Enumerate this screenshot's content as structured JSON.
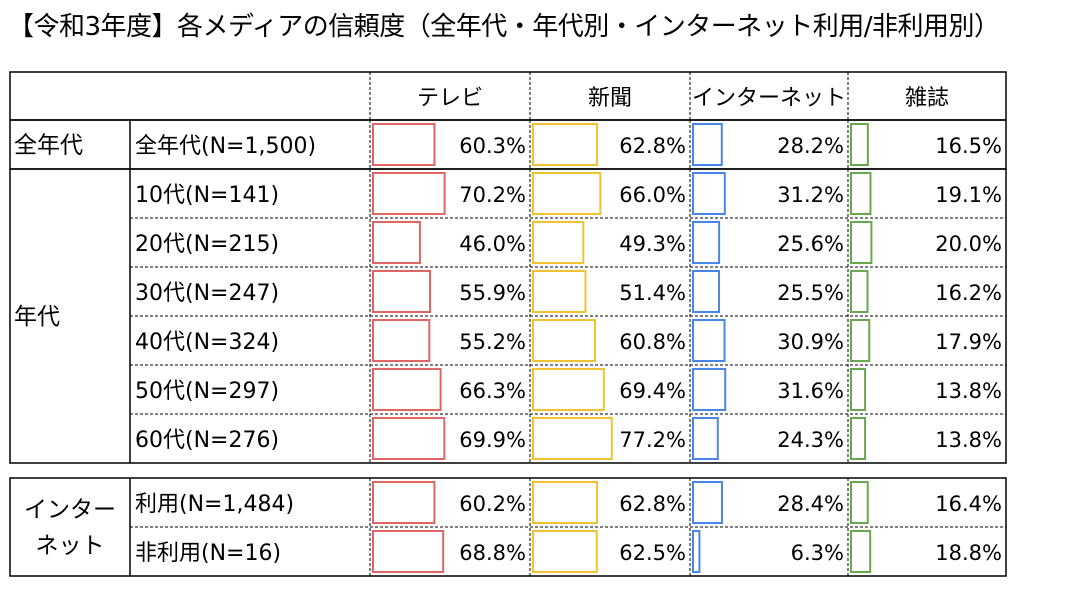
{
  "title": "【令和3年度】各メディアの信頼度（全年代・年代別・インターネット利用/非利用別）",
  "colors": {
    "tv": "#e06666",
    "newspaper": "#f1c232",
    "internet": "#4a86e8",
    "magazine": "#6aa84f"
  },
  "chart_data": {
    "type": "table",
    "title": "【令和3年度】各メディアの信頼度（全年代・年代別・インターネット利用/非利用別）",
    "columns": [
      "テレビ",
      "新聞",
      "インターネット",
      "雑誌"
    ],
    "xlim": [
      0,
      100
    ],
    "groups": [
      {
        "label": "全年代",
        "rows": [
          {
            "label": "全年代(N=1,500)",
            "values": [
              60.3,
              62.8,
              28.2,
              16.5
            ],
            "display": [
              "60.3%",
              "62.8%",
              "28.2%",
              "16.5%"
            ]
          }
        ]
      },
      {
        "label": "年代",
        "rows": [
          {
            "label": "10代(N=141)",
            "values": [
              70.2,
              66.0,
              31.2,
              19.1
            ],
            "display": [
              "70.2%",
              "66.0%",
              "31.2%",
              "19.1%"
            ]
          },
          {
            "label": "20代(N=215)",
            "values": [
              46.0,
              49.3,
              25.6,
              20.0
            ],
            "display": [
              "46.0%",
              "49.3%",
              "25.6%",
              "20.0%"
            ]
          },
          {
            "label": "30代(N=247)",
            "values": [
              55.9,
              51.4,
              25.5,
              16.2
            ],
            "display": [
              "55.9%",
              "51.4%",
              "25.5%",
              "16.2%"
            ]
          },
          {
            "label": "40代(N=324)",
            "values": [
              55.2,
              60.8,
              30.9,
              17.9
            ],
            "display": [
              "55.2%",
              "60.8%",
              "30.9%",
              "17.9%"
            ]
          },
          {
            "label": "50代(N=297)",
            "values": [
              66.3,
              69.4,
              31.6,
              13.8
            ],
            "display": [
              "66.3%",
              "69.4%",
              "31.6%",
              "13.8%"
            ]
          },
          {
            "label": "60代(N=276)",
            "values": [
              69.9,
              77.2,
              24.3,
              13.8
            ],
            "display": [
              "69.9%",
              "77.2%",
              "24.3%",
              "13.8%"
            ]
          }
        ]
      },
      {
        "label": "インター\nネット",
        "rows": [
          {
            "label": "利用(N=1,484)",
            "values": [
              60.2,
              62.8,
              28.4,
              16.4
            ],
            "display": [
              "60.2%",
              "62.8%",
              "28.4%",
              "16.4%"
            ]
          },
          {
            "label": "非利用(N=16)",
            "values": [
              68.8,
              62.5,
              6.3,
              18.8
            ],
            "display": [
              "68.8%",
              "62.5%",
              "6.3%",
              "18.8%"
            ]
          }
        ]
      }
    ]
  }
}
